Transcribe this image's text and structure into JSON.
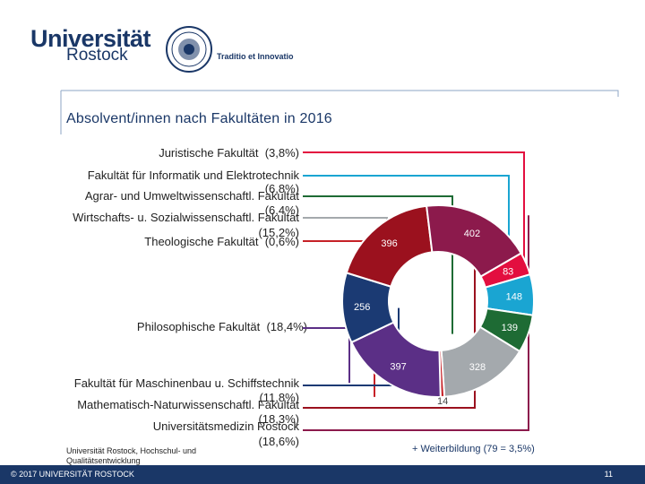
{
  "header": {
    "logo_line1": "Universität",
    "logo_line2": "Rostock",
    "motto": "Traditio et Innovatio"
  },
  "chart_data": {
    "type": "pie",
    "title": "Absolvent/innen nach Fakultäten in 2016",
    "slices": [
      {
        "label": "Juristische Fakultät",
        "pct": "(3,8%)",
        "value": 83,
        "value_label": "83",
        "color": "#e30e3f"
      },
      {
        "label": "Fakultät für Informatik und Elektrotechnik",
        "pct": "(6,8%)",
        "value": 148,
        "value_label": "148",
        "color": "#1aa5d2"
      },
      {
        "label": "Agrar- und Umweltwissenschaftl. Fakultät",
        "pct": "(6,4%)",
        "value": 139,
        "value_label": "139",
        "color": "#1e6b34"
      },
      {
        "label": "Wirtschafts- u. Sozialwissenschaftl. Fakultät",
        "pct": "(15,2%)",
        "value": 328,
        "value_label": "328",
        "color": "#a4a9ad"
      },
      {
        "label": "Theologische Fakultät",
        "pct": "(0,6%)",
        "value": 14,
        "value_label": "14",
        "color": "#c62127"
      },
      {
        "label": "Philosophische Fakultät",
        "pct": "(18,4%)",
        "value": 397,
        "value_label": "397",
        "color": "#5b2f86"
      },
      {
        "label": "Fakultät für Maschinenbau u. Schiffstechnik",
        "pct": "(11,8%)",
        "value": 256,
        "value_label": "256",
        "color": "#1b3a73"
      },
      {
        "label": "Mathematisch-Naturwissenschaftl. Fakultät",
        "pct": "(18,3%)",
        "value": 396,
        "value_label": "396",
        "color": "#9b111e"
      },
      {
        "label": "Universitätsmedizin Rostock",
        "pct": "(18,6%)",
        "value": 402,
        "value_label": "402",
        "color": "#8c1a4c"
      }
    ]
  },
  "note": "+ Weiterbildung (79 = 3,5%)",
  "source": "Universität Rostock, Hochschul- und Qualitätsentwicklung",
  "footer": {
    "copyright": "© 2017 UNIVERSITÄT ROSTOCK",
    "page_number": "11"
  }
}
